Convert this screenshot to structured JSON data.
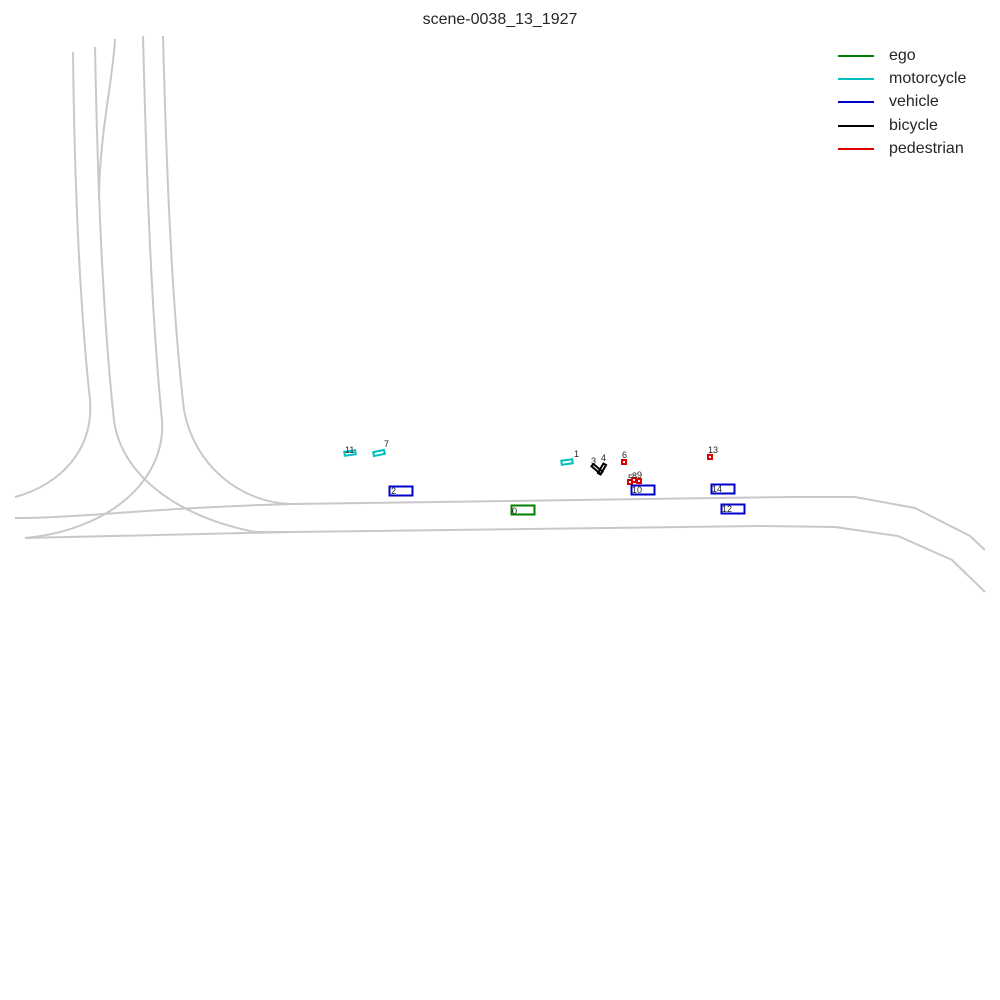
{
  "title": "scene-0038_13_1927",
  "legend": [
    {
      "label": "ego",
      "color": "#008000"
    },
    {
      "label": "motorcycle",
      "color": "#00bfbf"
    },
    {
      "label": "vehicle",
      "color": "#0000cc"
    },
    {
      "label": "bicycle",
      "color": "#000000"
    },
    {
      "label": "pedestrian",
      "color": "#e00000"
    }
  ],
  "objects": [
    {
      "id": "0",
      "category": "ego"
    },
    {
      "id": "1",
      "category": "motorcycle"
    },
    {
      "id": "2",
      "category": "vehicle"
    },
    {
      "id": "3",
      "category": "bicycle"
    },
    {
      "id": "4",
      "category": "bicycle"
    },
    {
      "id": "5",
      "category": "pedestrian"
    },
    {
      "id": "6",
      "category": "pedestrian"
    },
    {
      "id": "7",
      "category": "motorcycle"
    },
    {
      "id": "8",
      "category": "pedestrian"
    },
    {
      "id": "9",
      "category": "pedestrian"
    },
    {
      "id": "10",
      "category": "vehicle"
    },
    {
      "id": "11",
      "category": "motorcycle"
    },
    {
      "id": "12",
      "category": "vehicle"
    },
    {
      "id": "13",
      "category": "pedestrian"
    },
    {
      "id": "14",
      "category": "vehicle"
    }
  ]
}
